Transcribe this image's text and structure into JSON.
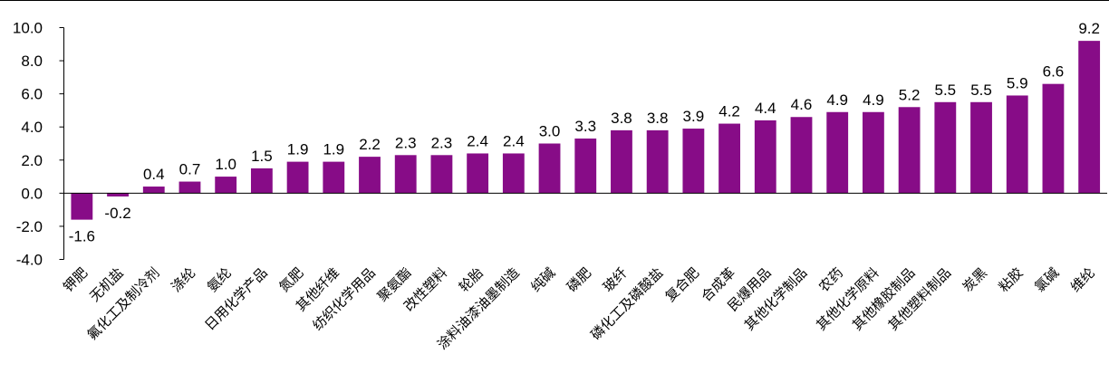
{
  "chart_data": {
    "type": "bar",
    "title": "",
    "xlabel": "",
    "ylabel": "",
    "ylim": [
      -4.0,
      10.0
    ],
    "yticks": [
      "10.0",
      "8.0",
      "6.0",
      "4.0",
      "2.0",
      "0.0",
      "-2.0",
      "-4.0"
    ],
    "bar_color": "#870C87",
    "grid": false,
    "legend": "none",
    "categories": [
      "钾肥",
      "无机盐",
      "氟化工及制冷剂",
      "涤纶",
      "氨纶",
      "日用化学产品",
      "氮肥",
      "其他纤维",
      "纺织化学用品",
      "聚氨酯",
      "改性塑料",
      "轮胎",
      "涂料油漆油墨制造",
      "纯碱",
      "磷肥",
      "玻纤",
      "磷化工及磷酸盐",
      "复合肥",
      "合成革",
      "民爆用品",
      "其他化学制品",
      "农药",
      "其他化学原料",
      "其他橡胶制品",
      "其他塑料制品",
      "炭黑",
      "粘胶",
      "氯碱",
      "维纶"
    ],
    "values": [
      -1.6,
      -0.2,
      0.4,
      0.7,
      1.0,
      1.5,
      1.9,
      1.9,
      2.2,
      2.3,
      2.3,
      2.4,
      2.4,
      3.0,
      3.3,
      3.8,
      3.8,
      3.9,
      4.2,
      4.4,
      4.6,
      4.9,
      4.9,
      5.2,
      5.5,
      5.5,
      5.9,
      6.6,
      9.2
    ],
    "data_labels": [
      "-1.6",
      "-0.2",
      "0.4",
      "0.7",
      "1.0",
      "1.5",
      "1.9",
      "1.9",
      "2.2",
      "2.3",
      "2.3",
      "2.4",
      "2.4",
      "3.0",
      "3.3",
      "3.8",
      "3.8",
      "3.9",
      "4.2",
      "4.4",
      "4.6",
      "4.9",
      "4.9",
      "5.2",
      "5.5",
      "5.5",
      "5.9",
      "6.6",
      "9.2"
    ]
  }
}
